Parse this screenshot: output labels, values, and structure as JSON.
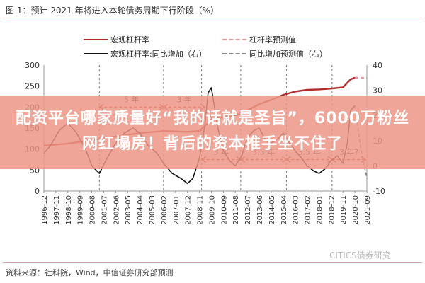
{
  "figure": {
    "title": "图 1：预计 2021 年将进入本轮债务周期下行阶段（%）",
    "source": "资料来源：社科院，Wind，中信证券研究部预测",
    "watermark": "CITICS债券研究"
  },
  "banner": {
    "text": "配资平台哪家质量好“我的话就是圣旨”，6000万粉丝网红塌房！背后的资本推手坐不住了"
  },
  "legend": {
    "leverage": "宏观杠杆率",
    "leverage_forecast": "杠杆率预测值",
    "yoy": "宏观杠杆率:同比增加（右）",
    "yoy_forecast": "同比增加预测值（右）"
  },
  "colors": {
    "leverage": "#b22b2b",
    "yoy": "#111111",
    "forecast_leverage": "#e09a9a",
    "forecast_yoy": "#888888",
    "arrow": "#c0392b",
    "banner": "#ec9686"
  },
  "chart_data": {
    "type": "line",
    "y_left": {
      "min": 0,
      "max": 300,
      "ticks": [
        0,
        50,
        100,
        150,
        200,
        250,
        300
      ]
    },
    "y_right": {
      "min": -10,
      "max": 40,
      "ticks": [
        -10,
        0,
        10,
        20,
        30,
        40
      ]
    },
    "x_tick_labels": [
      "1996-12",
      "1997-11",
      "1998-10",
      "1999-09",
      "2000-08",
      "2001-07",
      "2002-06",
      "2003-05",
      "2004-04",
      "2005-03",
      "2006-02",
      "2007-01",
      "2007-12",
      "2008-11",
      "2009-10",
      "2010-09",
      "2011-08",
      "2012-07",
      "2013-06",
      "2014-05",
      "2015-04",
      "2016-03",
      "2017-02",
      "2018-01",
      "2018-12",
      "2019-11",
      "2020-10",
      "2021-09"
    ],
    "series": [
      {
        "name": "宏观杠杆率",
        "axis": "left",
        "style": "solid",
        "x": [
          "1996-12",
          "1998-10",
          "2000-08",
          "2002-06",
          "2004-04",
          "2006-02",
          "2007-12",
          "2008-11",
          "2009-10",
          "2010-09",
          "2011-08",
          "2012-07",
          "2013-06",
          "2014-05",
          "2015-04",
          "2016-03",
          "2017-02",
          "2018-01",
          "2018-12",
          "2019-11",
          "2020-06",
          "2020-10"
        ],
        "y": [
          108,
          113,
          121,
          130,
          138,
          143,
          141,
          143,
          170,
          176,
          180,
          192,
          207,
          217,
          229,
          237,
          241,
          242,
          244,
          247,
          266,
          270
        ]
      },
      {
        "name": "杠杆率预测值",
        "axis": "left",
        "style": "dashed",
        "x": [
          "2020-10",
          "2021-03",
          "2021-09"
        ],
        "y": [
          270,
          270,
          269
        ]
      },
      {
        "name": "宏观杠杆率:同比增加（右）",
        "axis": "right",
        "style": "solid",
        "x": [
          "1996-12",
          "1997-06",
          "1998-02",
          "1998-10",
          "1999-06",
          "2000-02",
          "2000-08",
          "2001-03",
          "2001-10",
          "2002-06",
          "2003-02",
          "2003-10",
          "2004-04",
          "2004-12",
          "2005-08",
          "2006-02",
          "2006-10",
          "2007-06",
          "2007-12",
          "2008-05",
          "2008-11",
          "2009-04",
          "2009-07",
          "2009-10",
          "2010-04",
          "2010-09",
          "2011-03",
          "2011-08",
          "2012-02",
          "2012-07",
          "2013-01",
          "2013-06",
          "2013-12",
          "2014-05",
          "2014-12",
          "2015-04",
          "2015-10",
          "2016-03",
          "2016-09",
          "2017-02",
          "2017-08",
          "2018-01",
          "2018-07",
          "2018-12",
          "2019-06",
          "2019-11",
          "2020-03",
          "2020-06",
          "2020-10"
        ],
        "y": [
          5,
          8,
          14,
          17,
          13,
          7,
          0,
          -3,
          3,
          9,
          13,
          15,
          13,
          8,
          5,
          1,
          -3,
          -5,
          -7,
          -5,
          3,
          16,
          29,
          31,
          15,
          6,
          2,
          0,
          4,
          11,
          14,
          15,
          10,
          9,
          11,
          13,
          9,
          6,
          3,
          0,
          -2,
          -3,
          -1,
          2,
          4,
          1,
          9,
          22,
          24
        ]
      },
      {
        "name": "同比增加预测值（右）",
        "axis": "right",
        "style": "dashed",
        "x": [
          "2020-10",
          "2021-03",
          "2021-09"
        ],
        "y": [
          24,
          8,
          -5
        ]
      }
    ],
    "annotations": [
      {
        "label": "5 年",
        "y": 200,
        "x_from": "2001-03",
        "x_to": "2006-02"
      },
      {
        "label": "3 年",
        "y": 200,
        "x_from": "2006-02",
        "x_to": "2009-04"
      },
      {
        "label": "3 年",
        "y": 75,
        "x_from": "2009-01",
        "x_to": "2012-01"
      },
      {
        "label": "3.5 年",
        "y": 75,
        "x_from": "2012-01",
        "x_to": "2015-07"
      },
      {
        "label": "3.5 年",
        "y": 75,
        "x_from": "2015-07",
        "x_to": "2019-01"
      },
      {
        "label": "3 年?",
        "y": 75,
        "x_from": "2019-01",
        "x_to": "2022-01"
      }
    ]
  }
}
